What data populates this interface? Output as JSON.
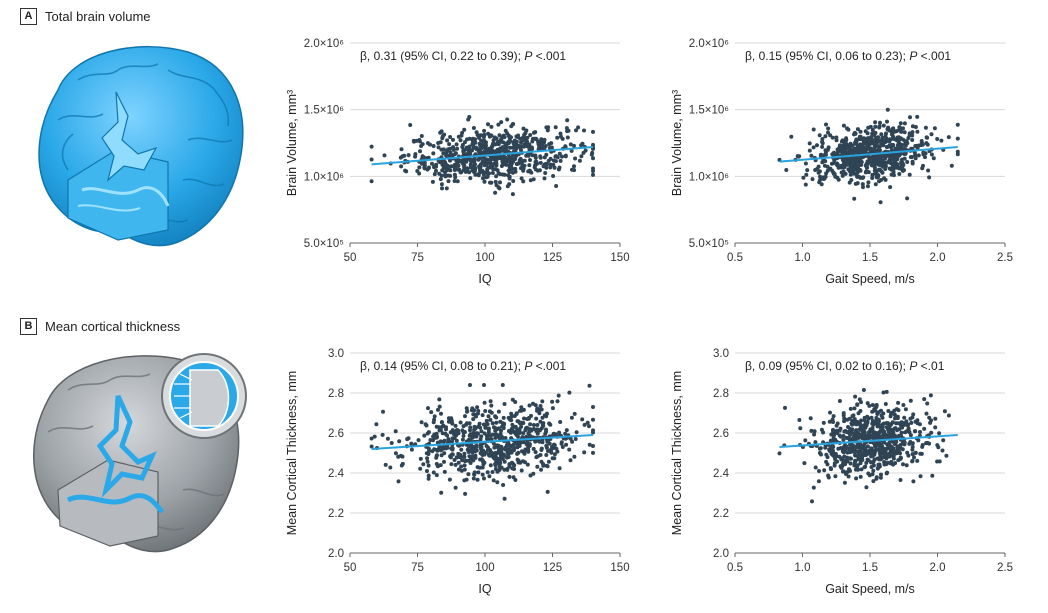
{
  "panels": [
    {
      "letter": "A",
      "title": "Total brain volume"
    },
    {
      "letter": "B",
      "title": "Mean cortical thickness"
    }
  ],
  "colors": {
    "point": "#2f4454",
    "fit_line": "#29a3de",
    "brain_volume": "#2aa8e8",
    "brain_cortical": "#8f9499"
  },
  "chart_data": [
    {
      "type": "scatter",
      "panel": "A",
      "title": "",
      "xlabel": "IQ",
      "ylabel": "Brain Volume, mm³",
      "xlim": [
        50,
        150
      ],
      "ylim": [
        500000,
        2000000
      ],
      "x_ticks": [
        50,
        75,
        100,
        125,
        150
      ],
      "y_ticks": [
        500000,
        1000000,
        1500000,
        2000000
      ],
      "x_tick_labels": [
        "50",
        "75",
        "100",
        "125",
        "150"
      ],
      "y_tick_labels": [
        "5.0×10⁵",
        "1.0×10⁶",
        "1.5×10⁶",
        "2.0×10⁶"
      ],
      "grid": true,
      "annotation": "β, 0.31 (95% CI, 0.22 to 0.39); P <.001",
      "fit_line": {
        "x": [
          58,
          140
        ],
        "y": [
          1090000,
          1220000
        ]
      },
      "points_summary": {
        "n": 700,
        "x_mean": 103,
        "x_sd": 16,
        "x_range": [
          58,
          140
        ],
        "y_mean": 1160000,
        "y_sd": 100000,
        "y_range": [
          760000,
          1500000
        ]
      }
    },
    {
      "type": "scatter",
      "panel": "A",
      "title": "",
      "xlabel": "Gait Speed, m/s",
      "ylabel": "Brain Volume, mm³",
      "xlim": [
        0.5,
        2.5
      ],
      "ylim": [
        500000,
        2000000
      ],
      "x_ticks": [
        0.5,
        1.0,
        1.5,
        2.0,
        2.5
      ],
      "y_ticks": [
        500000,
        1000000,
        1500000,
        2000000
      ],
      "x_tick_labels": [
        "0.5",
        "1.0",
        "1.5",
        "2.0",
        "2.5"
      ],
      "y_tick_labels": [
        "5.0×10⁵",
        "1.0×10⁶",
        "1.5×10⁶",
        "2.0×10⁶"
      ],
      "grid": true,
      "annotation": "β, 0.15 (95% CI, 0.06 to 0.23); P <.001",
      "fit_line": {
        "x": [
          0.83,
          2.15
        ],
        "y": [
          1110000,
          1220000
        ]
      },
      "points_summary": {
        "n": 700,
        "x_mean": 1.5,
        "x_sd": 0.22,
        "x_range": [
          0.83,
          2.15
        ],
        "y_mean": 1160000,
        "y_sd": 100000,
        "y_range": [
          760000,
          1500000
        ]
      }
    },
    {
      "type": "scatter",
      "panel": "B",
      "title": "",
      "xlabel": "IQ",
      "ylabel": "Mean Cortical Thickness, mm",
      "xlim": [
        50,
        150
      ],
      "ylim": [
        2.0,
        3.0
      ],
      "x_ticks": [
        50,
        75,
        100,
        125,
        150
      ],
      "y_ticks": [
        2.0,
        2.2,
        2.4,
        2.6,
        2.8,
        3.0
      ],
      "x_tick_labels": [
        "50",
        "75",
        "100",
        "125",
        "150"
      ],
      "y_tick_labels": [
        "2.0",
        "2.2",
        "2.4",
        "2.6",
        "2.8",
        "3.0"
      ],
      "grid": true,
      "annotation": "β, 0.14 (95% CI, 0.08 to 0.21); P <.001",
      "fit_line": {
        "x": [
          58,
          140
        ],
        "y": [
          2.52,
          2.59
        ]
      },
      "points_summary": {
        "n": 700,
        "x_mean": 103,
        "x_sd": 16,
        "x_range": [
          58,
          140
        ],
        "y_mean": 2.56,
        "y_sd": 0.09,
        "y_range": [
          2.24,
          2.84
        ]
      }
    },
    {
      "type": "scatter",
      "panel": "B",
      "title": "",
      "xlabel": "Gait Speed, m/s",
      "ylabel": "Mean Cortical Thickness, mm",
      "xlim": [
        0.5,
        2.5
      ],
      "ylim": [
        2.0,
        3.0
      ],
      "x_ticks": [
        0.5,
        1.0,
        1.5,
        2.0,
        2.5
      ],
      "y_ticks": [
        2.0,
        2.2,
        2.4,
        2.6,
        2.8,
        3.0
      ],
      "x_tick_labels": [
        "0.5",
        "1.0",
        "1.5",
        "2.0",
        "2.5"
      ],
      "y_tick_labels": [
        "2.0",
        "2.2",
        "2.4",
        "2.6",
        "2.8",
        "3.0"
      ],
      "grid": true,
      "annotation": "β, 0.09 (95% CI, 0.02 to 0.16); P <.01",
      "fit_line": {
        "x": [
          0.83,
          2.15
        ],
        "y": [
          2.53,
          2.59
        ]
      },
      "points_summary": {
        "n": 700,
        "x_mean": 1.5,
        "x_sd": 0.22,
        "x_range": [
          0.83,
          2.15
        ],
        "y_mean": 2.56,
        "y_sd": 0.09,
        "y_range": [
          2.24,
          2.84
        ]
      }
    }
  ]
}
